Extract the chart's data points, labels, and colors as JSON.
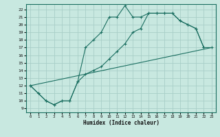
{
  "xlabel": "Humidex (Indice chaleur)",
  "bg_color": "#c8e8e0",
  "grid_color": "#a8cec8",
  "line_color": "#1a6e60",
  "xlim": [
    -0.5,
    23.5
  ],
  "ylim": [
    8.5,
    22.7
  ],
  "xticks": [
    0,
    1,
    2,
    3,
    4,
    5,
    6,
    7,
    8,
    9,
    10,
    11,
    12,
    13,
    14,
    15,
    16,
    17,
    18,
    19,
    20,
    21,
    22,
    23
  ],
  "yticks": [
    9,
    10,
    11,
    12,
    13,
    14,
    15,
    16,
    17,
    18,
    19,
    20,
    21,
    22
  ],
  "curve1_x": [
    0,
    1,
    2,
    3,
    4,
    5,
    6,
    7,
    8,
    9,
    10,
    11,
    12,
    13,
    14,
    15,
    16,
    17,
    18,
    19,
    20,
    21,
    22
  ],
  "curve1_y": [
    12,
    11,
    10,
    9.5,
    10,
    10,
    12.5,
    17,
    18,
    19,
    21,
    21,
    22.5,
    21,
    21,
    21.5,
    21.5,
    21.5,
    21.5,
    20.5,
    20,
    19.5,
    17
  ],
  "curve2_x": [
    0,
    23
  ],
  "curve2_y": [
    12,
    17
  ],
  "curve3_x": [
    0,
    1,
    2,
    3,
    4,
    5,
    6,
    7,
    8,
    9,
    10,
    11,
    12,
    13,
    14,
    15,
    16,
    17,
    18,
    19,
    20,
    21,
    22,
    23
  ],
  "curve3_y": [
    12,
    11,
    10,
    9.5,
    10,
    10,
    12.5,
    13.5,
    14,
    14.5,
    15.5,
    16.5,
    17.5,
    19,
    19.5,
    21.5,
    21.5,
    21.5,
    21.5,
    20.5,
    20,
    19.5,
    17,
    17
  ]
}
